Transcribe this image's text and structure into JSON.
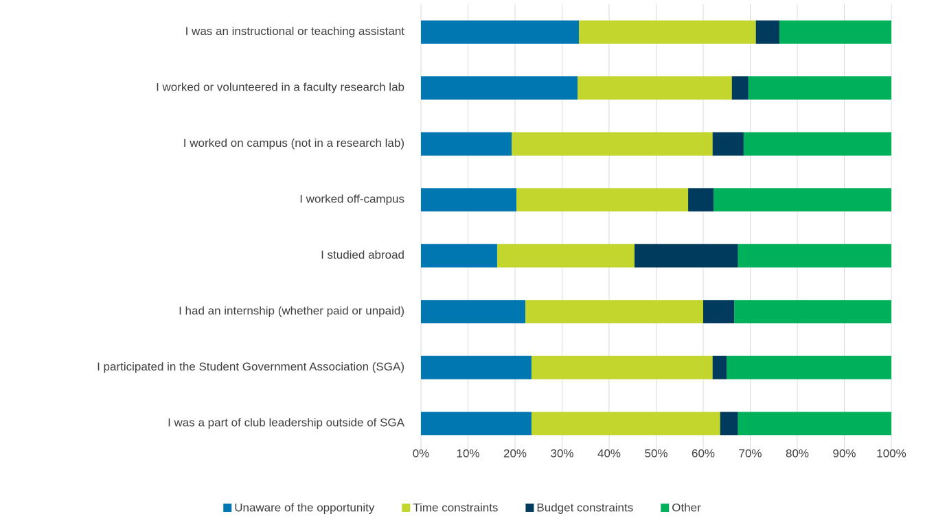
{
  "chart_data": {
    "type": "stacked_bar_horizontal",
    "categories": [
      "I was an instructional or teaching assistant",
      "I worked or volunteered in a faculty research lab",
      "I worked on campus (not in a research lab)",
      "I worked off-campus",
      "I studied abroad",
      "I had an internship (whether paid or unpaid)",
      "I participated in the Student Government Association (SGA)",
      "I was a part of club leadership outside of SGA"
    ],
    "series": [
      {
        "name": "Unaware of the opportunity",
        "color": "#0077b0",
        "values": [
          33.6,
          33.3,
          19.3,
          20.3,
          16.2,
          22.2,
          23.5,
          23.5
        ]
      },
      {
        "name": "Time constraints",
        "color": "#c2d62e",
        "values": [
          37.6,
          32.8,
          42.7,
          36.5,
          29.2,
          37.8,
          38.5,
          40.1
        ]
      },
      {
        "name": "Budget constraints",
        "color": "#003a5d",
        "values": [
          5.0,
          3.5,
          6.6,
          5.4,
          22.0,
          6.6,
          3.0,
          3.8
        ]
      },
      {
        "name": "Other",
        "color": "#00b05a",
        "values": [
          23.8,
          30.4,
          31.4,
          37.8,
          32.6,
          33.4,
          35.0,
          32.6
        ]
      }
    ],
    "xlim": [
      0,
      100
    ],
    "xticks": [
      {
        "value": 0,
        "label": "0%"
      },
      {
        "value": 10,
        "label": "10%"
      },
      {
        "value": 20,
        "label": "20%"
      },
      {
        "value": 30,
        "label": "30%"
      },
      {
        "value": 40,
        "label": "40%"
      },
      {
        "value": 50,
        "label": "50%"
      },
      {
        "value": 60,
        "label": "60%"
      },
      {
        "value": 70,
        "label": "70%"
      },
      {
        "value": 80,
        "label": "80%"
      },
      {
        "value": 90,
        "label": "90%"
      },
      {
        "value": 100,
        "label": "100%"
      }
    ],
    "grid": true,
    "legend": "bottom"
  }
}
